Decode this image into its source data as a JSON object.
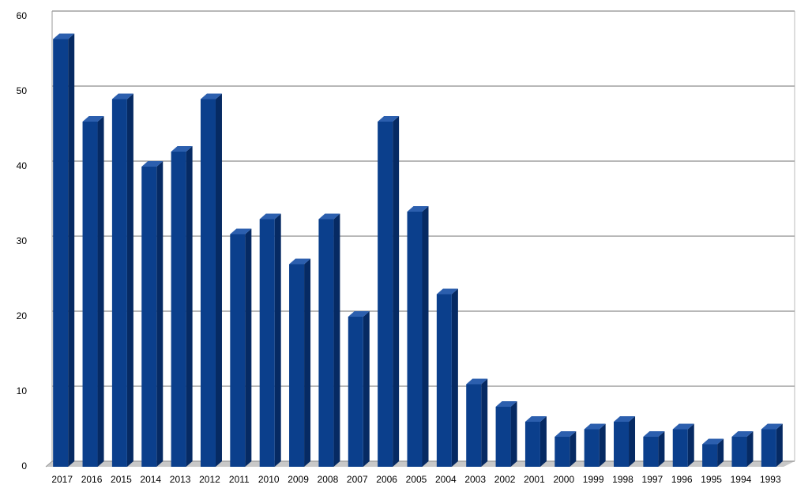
{
  "chart_data": {
    "type": "bar",
    "categories": [
      "2017",
      "2016",
      "2015",
      "2014",
      "2013",
      "2012",
      "2011",
      "2010",
      "2009",
      "2008",
      "2007",
      "2006",
      "2005",
      "2004",
      "2003",
      "2002",
      "2001",
      "2000",
      "1999",
      "1998",
      "1997",
      "1996",
      "1995",
      "1994",
      "1993"
    ],
    "values": [
      57,
      46,
      49,
      40,
      42,
      49,
      31,
      33,
      27,
      33,
      20,
      46,
      34,
      23,
      11,
      8,
      6,
      4,
      5,
      6,
      4,
      5,
      3,
      4,
      5
    ],
    "color": "#0b3f8c",
    "ylim": [
      0,
      60
    ],
    "yticks": [
      0,
      10,
      20,
      30,
      40,
      50,
      60
    ],
    "grid": true
  }
}
